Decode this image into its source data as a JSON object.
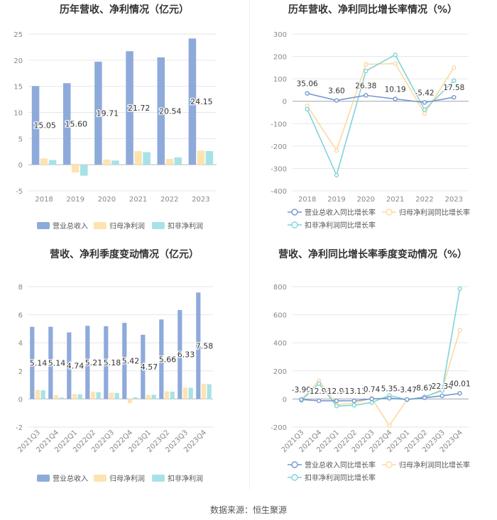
{
  "colors": {
    "revenue": "#8eaadb",
    "net_profit": "#fde3b0",
    "deducted_profit": "#a7e2e6",
    "revenue_line": "#7497cf",
    "net_line": "#fcd9a0",
    "deducted_line": "#7fd4d9",
    "axis_text": "#888888",
    "grid": "#e6e6e6",
    "title": "#333333"
  },
  "footer": {
    "source": "数据来源：恒生聚源"
  },
  "chart_data": [
    {
      "id": "annual_amount",
      "type": "bar",
      "title": "历年营收、净利情况（亿元）",
      "categories": [
        "2018",
        "2019",
        "2020",
        "2021",
        "2022",
        "2023"
      ],
      "series": [
        {
          "name": "营业总收入",
          "values": [
            15.05,
            15.6,
            19.71,
            21.72,
            20.54,
            24.15
          ],
          "labels": [
            "15.05",
            "15.60",
            "19.71",
            "21.72",
            "20.54",
            "24.15"
          ]
        },
        {
          "name": "归母净利润",
          "values": [
            1.2,
            -1.5,
            1.0,
            2.6,
            1.1,
            2.7
          ]
        },
        {
          "name": "扣非净利润",
          "values": [
            0.9,
            -2.1,
            0.8,
            2.4,
            1.4,
            2.6
          ]
        }
      ],
      "ylim": [
        -5,
        25
      ],
      "yticks": [
        "-5",
        "0",
        "5",
        "10",
        "15",
        "20",
        "25"
      ],
      "legend": [
        "营业总收入",
        "归母净利润",
        "扣非净利润"
      ]
    },
    {
      "id": "annual_growth",
      "type": "line",
      "title": "历年营收、净利同比增长率情况（%）",
      "categories": [
        "2018",
        "2019",
        "2020",
        "2021",
        "2022",
        "2023"
      ],
      "series": [
        {
          "name": "营业总收入同比增长率",
          "values": [
            35.06,
            3.6,
            26.38,
            10.19,
            -5.42,
            17.58
          ],
          "labels": [
            "35.06",
            "3.60",
            "26.38",
            "10.19",
            "-5.42",
            "17.58"
          ]
        },
        {
          "name": "归母净利润同比增长率",
          "values": [
            -20,
            -220,
            165,
            168,
            -55,
            150
          ]
        },
        {
          "name": "扣非净利润同比增长率",
          "values": [
            -35,
            -330,
            135,
            207,
            -38,
            92
          ]
        }
      ],
      "ylim": [
        -400,
        300
      ],
      "yticks": [
        "-400",
        "-300",
        "-200",
        "-100",
        "0",
        "100",
        "200",
        "300"
      ],
      "legend": [
        "营业总收入同比增长率",
        "归母净利润同比增长率",
        "扣非净利润同比增长率"
      ]
    },
    {
      "id": "quarterly_amount",
      "type": "bar",
      "title": "营收、净利季度变动情况（亿元）",
      "categories": [
        "2021Q3",
        "2021Q4",
        "2022Q1",
        "2022Q2",
        "2022Q3",
        "2022Q4",
        "2023Q1",
        "2023Q2",
        "2023Q3",
        "2023Q4"
      ],
      "series": [
        {
          "name": "营业总收入",
          "values": [
            5.14,
            5.14,
            4.74,
            5.21,
            5.18,
            5.42,
            4.57,
            5.66,
            6.33,
            7.58
          ],
          "labels": [
            "5.14",
            "5.14",
            "4.74",
            "5.21",
            "5.18",
            "5.42",
            "4.57",
            "5.66",
            "6.33",
            "7.58"
          ]
        },
        {
          "name": "归母净利润",
          "values": [
            0.65,
            0.28,
            0.35,
            0.52,
            0.45,
            -0.3,
            0.3,
            0.55,
            0.82,
            1.08
          ]
        },
        {
          "name": "扣非净利润",
          "values": [
            0.62,
            0.1,
            0.33,
            0.48,
            0.43,
            0.12,
            0.3,
            0.52,
            0.8,
            1.05
          ]
        }
      ],
      "ylim": [
        -2,
        8
      ],
      "yticks": [
        "-2",
        "0",
        "2",
        "4",
        "6",
        "8"
      ],
      "legend": [
        "营业总收入",
        "归母净利润",
        "扣非净利润"
      ]
    },
    {
      "id": "quarterly_growth",
      "type": "line",
      "title": "营收、净利同比增长率季度变动情况（%）",
      "categories": [
        "2021Q3",
        "2021Q4",
        "2022Q1",
        "2022Q2",
        "2022Q3",
        "2022Q4",
        "2023Q1",
        "2023Q2",
        "2023Q3",
        "2023Q4"
      ],
      "series": [
        {
          "name": "营业总收入同比增长率",
          "values": [
            -3.9,
            -12.93,
            -12.91,
            -13.13,
            0.74,
            5.35,
            -3.47,
            8.67,
            22.34,
            40.01
          ],
          "labels": [
            "-3.90",
            "-12.93",
            "-12.91",
            "-13.13",
            "0.74",
            "5.35",
            "-3.47",
            "8.67",
            "22.34",
            "40.01"
          ]
        },
        {
          "name": "归母净利润同比增长率",
          "values": [
            -5,
            130,
            -40,
            -30,
            5,
            -190,
            -5,
            10,
            70,
            490
          ]
        },
        {
          "name": "扣非净利润同比增长率",
          "values": [
            -10,
            110,
            -50,
            -45,
            -25,
            25,
            -5,
            15,
            60,
            785
          ]
        }
      ],
      "ylim": [
        -200,
        800
      ],
      "yticks": [
        "-200",
        "0",
        "200",
        "400",
        "600",
        "800"
      ],
      "legend": [
        "营业总收入同比增长率",
        "归母净利润同比增长率",
        "扣非净利润同比增长率"
      ]
    }
  ]
}
